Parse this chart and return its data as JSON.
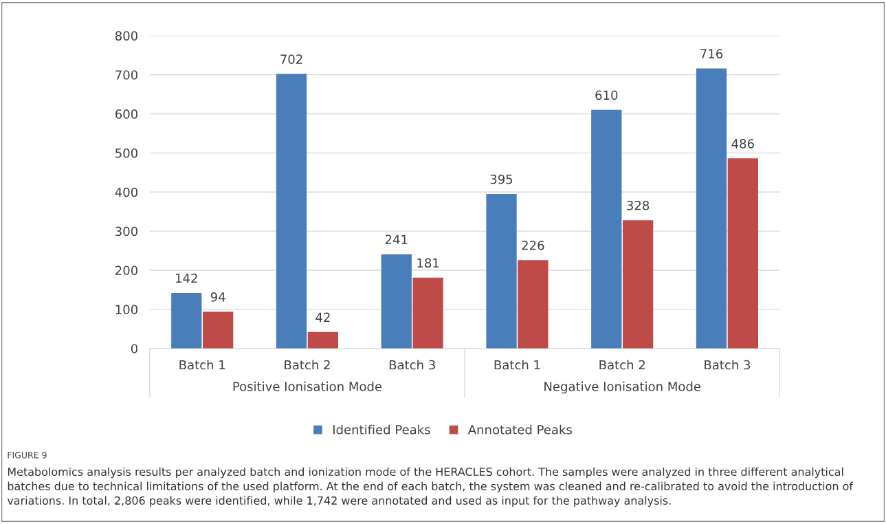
{
  "chart_data": {
    "type": "bar",
    "categories": [
      "Batch 1",
      "Batch 2",
      "Batch 3",
      "Batch 1",
      "Batch 2",
      "Batch 3"
    ],
    "series": [
      {
        "name": "Identified Peaks",
        "color": "#4a7ebb",
        "values": [
          142,
          702,
          241,
          395,
          610,
          716
        ]
      },
      {
        "name": "Annotated Peaks",
        "color": "#be4b48",
        "values": [
          94,
          42,
          181,
          226,
          328,
          486
        ]
      }
    ],
    "ylim": [
      0,
      800
    ],
    "yticks": [
      0,
      100,
      200,
      300,
      400,
      500,
      600,
      700,
      800
    ],
    "grid": "y",
    "legend": "bottom",
    "data_labels": true,
    "annotations": [
      "Positive Ionisation Mode",
      "Negative Ionisation Mode",
      "FIGURE 9",
      "Metabolomics analysis results per analyzed batch and ionization mode of the HERACLES cohort. The samples were analyzed in three different analytical batches due to technical limitations of the used platform. At the end of each batch, the system was cleaned and re-calibrated to avoid the introduction of variations. In total, 2,806 peaks were identified, while 1,742 were annotated and used as input for the pathway analysis."
    ]
  }
}
